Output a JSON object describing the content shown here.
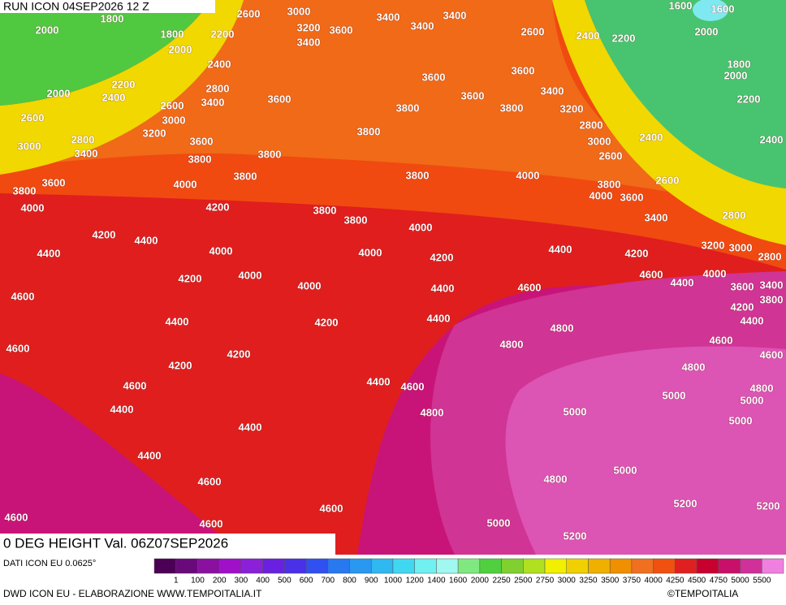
{
  "header": {
    "run": "RUN ICON 04SEP2026 12 Z",
    "title": "0 DEG HEIGHT Val. 06Z07SEP2026"
  },
  "contour_labels": [
    2600,
    3000,
    3400,
    3400,
    1600,
    1600,
    2000,
    1800,
    1800,
    2200,
    3200,
    3600,
    3400,
    3400,
    2600,
    2400,
    2200,
    2000,
    2000,
    2400,
    3600,
    3600,
    1800,
    2000,
    2200,
    2800,
    3400,
    2000,
    2400,
    2600,
    3400,
    3600,
    3600,
    3800,
    3800,
    3200,
    2200,
    2600,
    3000,
    2800,
    3800,
    3200,
    2800,
    3600,
    3000,
    2400,
    2400,
    3000,
    3400,
    3800,
    2600,
    3800,
    3800,
    3800,
    4000,
    2600,
    3600,
    4000,
    3800,
    3800,
    4000,
    3600,
    4000,
    4200,
    3800,
    3400,
    2800,
    3800,
    4000,
    4200,
    4400,
    3200,
    3000,
    4400,
    4000,
    4000,
    4200,
    4400,
    4200,
    2800,
    4000,
    4600,
    4000,
    4200,
    4400,
    4000,
    4400,
    4600,
    3600,
    3400,
    4600,
    3800,
    4200,
    4400,
    4200,
    4400,
    4800,
    4400,
    4600,
    4800,
    4600,
    4600,
    4200,
    4200,
    4800,
    4400,
    4600,
    4600,
    4800,
    5000,
    5000,
    4400,
    4800,
    5000,
    5000,
    4400,
    4400,
    5000,
    4800,
    4600,
    5200,
    5200,
    4600,
    4600,
    4600,
    5000,
    5200
  ],
  "legend": {
    "source": "DATI ICON EU 0.0625°",
    "labels": [
      1,
      100,
      200,
      300,
      400,
      500,
      600,
      700,
      800,
      900,
      1000,
      1200,
      1400,
      1600,
      2000,
      2250,
      2500,
      2750,
      3000,
      3250,
      3500,
      3750,
      4000,
      4250,
      4500,
      4750,
      5000,
      5500
    ],
    "colors": [
      "#4b0055",
      "#6a0a7a",
      "#8a10a0",
      "#a010c8",
      "#8a20d8",
      "#6a20e0",
      "#4a30e8",
      "#3050f0",
      "#2878f0",
      "#2898f0",
      "#30b8f0",
      "#40d8f0",
      "#70f0f0",
      "#a0f8f0",
      "#80e880",
      "#50d040",
      "#80d030",
      "#b0e020",
      "#f0f000",
      "#f0d000",
      "#f0b000",
      "#f09000",
      "#f07020",
      "#f05010",
      "#e02020",
      "#c80030",
      "#c8106a",
      "#d0309a",
      "#f080e0"
    ]
  },
  "footer": {
    "credit": "DWD ICON EU - ELABORAZIONE WWW.TEMPOITALIA.IT",
    "copyright": "©TEMPOITALIA"
  }
}
